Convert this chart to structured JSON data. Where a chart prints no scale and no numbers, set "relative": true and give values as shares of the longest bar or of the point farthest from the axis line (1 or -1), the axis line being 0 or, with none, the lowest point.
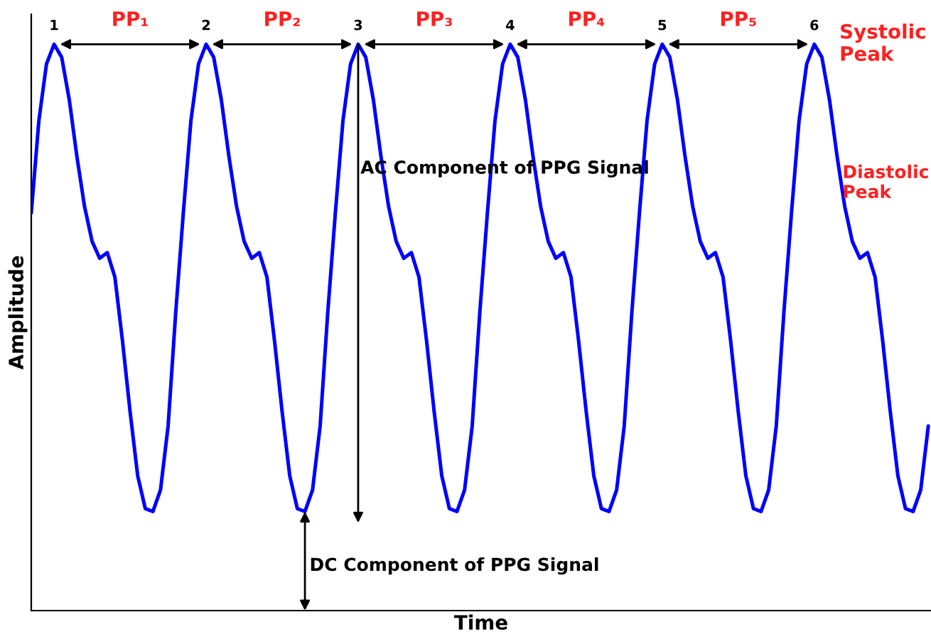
{
  "chart_data": {
    "type": "line",
    "relative": true,
    "xlabel": "Time",
    "ylabel": "Amplitude",
    "categories": [
      null,
      null,
      null,
      null,
      null,
      null,
      null,
      null,
      null,
      null,
      null,
      null,
      null,
      null,
      null,
      null,
      null,
      null,
      null,
      null,
      null,
      null,
      null,
      null,
      null,
      null,
      null,
      null,
      null,
      null,
      null,
      null,
      null,
      null,
      null,
      null,
      null,
      null,
      null,
      null,
      null,
      null,
      null,
      null,
      null,
      null,
      null,
      null,
      null,
      null,
      null,
      null,
      null,
      null,
      null,
      null,
      null,
      null,
      null,
      null,
      null,
      null,
      null,
      null,
      null,
      null,
      null,
      null,
      null,
      null,
      null,
      null,
      null,
      null,
      null,
      null,
      null,
      null,
      null,
      null,
      null,
      null,
      null,
      null,
      null,
      null,
      null,
      null,
      null,
      null,
      null,
      null,
      null,
      null,
      null,
      null,
      null,
      null,
      null,
      null,
      null,
      null,
      null,
      null,
      null,
      null,
      null,
      null,
      null,
      null,
      null,
      null,
      null,
      null,
      null,
      null,
      null,
      null,
      null
    ],
    "series": [
      {
        "color": "#0000ff",
        "values": [
          0.702,
          0.865,
          0.965,
          1.0,
          0.977,
          0.902,
          0.802,
          0.714,
          0.652,
          0.622,
          0.632,
          0.589,
          0.476,
          0.351,
          0.238,
          0.18,
          0.175,
          0.213,
          0.326,
          0.526,
          0.702,
          0.865,
          0.965,
          1.0,
          0.977,
          0.902,
          0.802,
          0.714,
          0.652,
          0.622,
          0.632,
          0.589,
          0.476,
          0.351,
          0.238,
          0.18,
          0.175,
          0.213,
          0.326,
          0.526,
          0.702,
          0.865,
          0.965,
          1.0,
          0.977,
          0.902,
          0.802,
          0.714,
          0.652,
          0.622,
          0.632,
          0.589,
          0.476,
          0.351,
          0.238,
          0.18,
          0.175,
          0.213,
          0.326,
          0.526,
          0.702,
          0.865,
          0.965,
          1.0,
          0.977,
          0.902,
          0.802,
          0.714,
          0.652,
          0.622,
          0.632,
          0.589,
          0.476,
          0.351,
          0.238,
          0.18,
          0.175,
          0.213,
          0.326,
          0.526,
          0.702,
          0.865,
          0.965,
          1.0,
          0.977,
          0.902,
          0.802,
          0.714,
          0.652,
          0.622,
          0.632,
          0.589,
          0.476,
          0.351,
          0.238,
          0.18,
          0.175,
          0.213,
          0.326,
          0.526,
          0.702,
          0.865,
          0.965,
          1.0,
          0.977,
          0.902,
          0.802,
          0.714,
          0.652,
          0.622,
          0.632,
          0.589,
          0.476,
          0.351,
          0.238,
          0.18,
          0.175,
          0.213,
          0.326
        ]
      }
    ],
    "annotations": [
      "1",
      "2",
      "3",
      "4",
      "5",
      "6",
      "PP₁",
      "PP₂",
      "PP₃",
      "PP₄",
      "PP₅",
      "Systolic\nPeak",
      "Diastolic\nPeak",
      "AC Component of PPG Signal",
      "DC Component of PPG Signal"
    ],
    "legend": false,
    "marker": "none",
    "line_style": "solid"
  }
}
